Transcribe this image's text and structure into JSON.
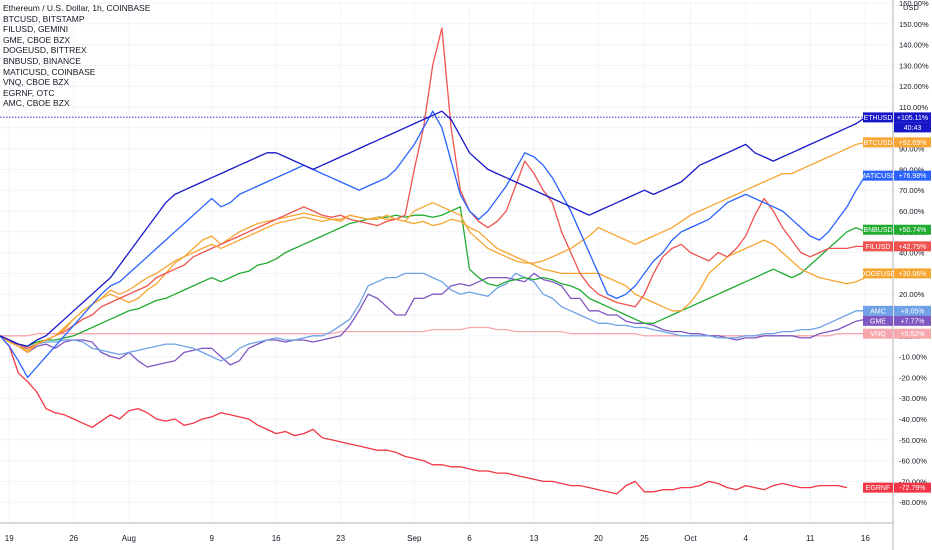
{
  "legend": {
    "main": "Ethereum / U.S. Dollar, 1h, COINBASE",
    "items": [
      "BTCUSD, BITSTAMP",
      "FILUSD, GEMINI",
      "GME, CBOE BZX",
      "DOGEUSD, BITTREX",
      "BNBUSD, BINANCE",
      "MATICUSD, COINBASE",
      "VNQ, CBOE BZX",
      "EGRNF, OTC",
      "AMC, CBOE BZX"
    ]
  },
  "chart_data": {
    "type": "line",
    "y_unit": "USD",
    "ylim": [
      -90,
      160
    ],
    "y_ticks": [
      "160.00%",
      "150.00%",
      "140.00%",
      "130.00%",
      "120.00%",
      "110.00%",
      "100.00%",
      "90.00%",
      "80.00%",
      "70.00%",
      "60.00%",
      "50.00%",
      "40.00%",
      "30.00%",
      "20.00%",
      "10.00%",
      "0.00%",
      "-10.00%",
      "-20.00%",
      "-30.00%",
      "-40.00%",
      "-50.00%",
      "-60.00%",
      "-70.00%",
      "-80.00%"
    ],
    "y_tick_values": [
      160,
      150,
      140,
      130,
      120,
      110,
      100,
      90,
      80,
      70,
      60,
      50,
      40,
      30,
      20,
      10,
      0,
      -10,
      -20,
      -30,
      -40,
      -50,
      -60,
      -70,
      -80
    ],
    "x_ticks": [
      "19",
      "26",
      "Aug",
      "9",
      "16",
      "23",
      "Sep",
      "6",
      "13",
      "20",
      "25",
      "Oct",
      "4",
      "11",
      "16"
    ],
    "x_tick_index": [
      1,
      8,
      14,
      23,
      30,
      37,
      45,
      51,
      58,
      65,
      70,
      75,
      81,
      88,
      94
    ],
    "x_range": [
      0,
      97
    ],
    "crosshair_value": 105.11,
    "countdown": "40:43",
    "series": [
      {
        "name": "EGRNF",
        "color": "#f23645",
        "last_label": "-72.79%",
        "values": [
          0,
          -5,
          -18,
          -22,
          -27,
          -35,
          -37,
          -38,
          -40,
          -42,
          -44,
          -41,
          -38,
          -40,
          -36,
          -35,
          -37,
          -40,
          -41,
          -40,
          -43,
          -42,
          -40,
          -39,
          -37,
          -38,
          -39,
          -40,
          -43,
          -45,
          -47,
          -46,
          -48,
          -47,
          -45,
          -49,
          -50,
          -51,
          -52,
          -53,
          -54,
          -55,
          -55,
          -56,
          -58,
          -59,
          -60,
          -62,
          -62,
          -63,
          -63,
          -64,
          -65,
          -65,
          -66,
          -66,
          -67,
          -68,
          -69,
          -70,
          -70,
          -71,
          -72,
          -72,
          -73,
          -74,
          -75,
          -76,
          -72,
          -70,
          -75,
          -75,
          -74,
          -74,
          -73,
          -73,
          -72,
          -70,
          -71,
          -73,
          -74,
          -72,
          -73,
          -74,
          -72,
          -71,
          -72,
          -73,
          -73,
          -72,
          -72,
          -72,
          -73
        ]
      },
      {
        "name": "VNQ",
        "color": "#f7a8ad",
        "last_label": "+0.52%",
        "values": [
          0,
          0,
          0,
          0,
          1,
          1,
          1,
          1,
          1,
          1,
          1,
          1,
          1,
          1,
          1,
          1,
          1,
          1,
          1,
          1,
          1,
          1,
          1,
          1,
          1,
          1,
          1,
          1,
          1,
          1,
          1,
          1,
          1,
          1,
          1,
          1,
          1,
          2,
          2,
          2,
          2,
          2,
          2,
          2,
          2,
          2,
          2,
          3,
          3,
          3,
          3,
          4,
          4,
          4,
          3,
          3,
          2,
          2,
          2,
          2,
          2,
          2,
          1,
          1,
          1,
          1,
          1,
          1,
          1,
          1,
          0,
          0,
          0,
          0,
          0,
          0,
          0,
          0,
          0,
          0,
          0,
          0,
          0,
          0,
          0,
          0,
          0,
          0,
          0,
          0,
          0,
          1,
          1,
          1,
          1,
          1
        ]
      },
      {
        "name": "GME",
        "color": "#7e57c2",
        "last_label": "+7.77%",
        "values": [
          0,
          -2,
          -5,
          -8,
          -5,
          -4,
          -6,
          -3,
          -2,
          -2,
          -3,
          -8,
          -10,
          -11,
          -8,
          -12,
          -15,
          -14,
          -13,
          -12,
          -8,
          -7,
          -6,
          -6,
          -10,
          -14,
          -12,
          -6,
          -4,
          -2,
          -2,
          -3,
          -2,
          -2,
          -3,
          -2,
          -1,
          0,
          5,
          12,
          20,
          18,
          14,
          10,
          10,
          18,
          18,
          20,
          20,
          24,
          25,
          24,
          26,
          28,
          28,
          28,
          27,
          26,
          30,
          27,
          26,
          24,
          18,
          18,
          12,
          12,
          10,
          10,
          7,
          6,
          6,
          5,
          3,
          2,
          2,
          1,
          1,
          0,
          0,
          -1,
          -2,
          -1,
          -1,
          0,
          0,
          0,
          0,
          -1,
          -1,
          1,
          2,
          3,
          5,
          7,
          8
        ]
      },
      {
        "name": "AMC",
        "color": "#6ea1e6",
        "last_label": "+9.05%",
        "values": [
          0,
          -3,
          -5,
          -6,
          -4,
          -3,
          -3,
          -2,
          -2,
          -3,
          -6,
          -7,
          -8,
          -9,
          -8,
          -7,
          -6,
          -5,
          -4,
          -4,
          -5,
          -6,
          -8,
          -10,
          -12,
          -10,
          -6,
          -4,
          -3,
          -2,
          -1,
          -2,
          -2,
          -1,
          0,
          0,
          2,
          5,
          8,
          15,
          24,
          26,
          28,
          28,
          30,
          30,
          30,
          28,
          26,
          22,
          20,
          21,
          20,
          19,
          23,
          25,
          30,
          28,
          26,
          20,
          18,
          14,
          12,
          10,
          8,
          6,
          6,
          5,
          5,
          4,
          4,
          3,
          2,
          1,
          0,
          0,
          0,
          0,
          -1,
          -1,
          -1,
          0,
          0,
          1,
          1,
          2,
          2,
          3,
          3,
          4,
          6,
          8,
          10,
          12,
          12
        ]
      },
      {
        "name": "BNBUSD",
        "color": "#22ab32",
        "last_label": "+50.74%",
        "values": [
          0,
          -2,
          -4,
          -5,
          -3,
          -2,
          -2,
          -1,
          0,
          2,
          4,
          6,
          8,
          10,
          12,
          13,
          15,
          17,
          18,
          20,
          22,
          24,
          26,
          28,
          26,
          28,
          30,
          31,
          34,
          35,
          37,
          40,
          42,
          44,
          46,
          48,
          50,
          52,
          54,
          55,
          56,
          57,
          57,
          58,
          57,
          58,
          58,
          57,
          58,
          60,
          62,
          32,
          28,
          25,
          24,
          26,
          27,
          28,
          27,
          28,
          27,
          25,
          24,
          22,
          18,
          16,
          14,
          12,
          10,
          8,
          6,
          6,
          8,
          10,
          12,
          14,
          16,
          18,
          20,
          22,
          24,
          26,
          28,
          30,
          32,
          30,
          28,
          30,
          34,
          38,
          42,
          46,
          50,
          52,
          50,
          51
        ]
      },
      {
        "name": "DOGEUSD",
        "color": "#f6a530",
        "last_label": "+30.06%",
        "values": [
          0,
          -3,
          -5,
          -8,
          -4,
          -2,
          0,
          4,
          8,
          12,
          15,
          18,
          20,
          18,
          16,
          18,
          22,
          25,
          30,
          35,
          38,
          42,
          46,
          48,
          44,
          47,
          50,
          52,
          54,
          55,
          56,
          57,
          58,
          59,
          58,
          57,
          56,
          56,
          58,
          57,
          56,
          57,
          56,
          56,
          55,
          54,
          55,
          53,
          54,
          56,
          55,
          52,
          50,
          46,
          42,
          40,
          38,
          36,
          34,
          32,
          31,
          30,
          30,
          30,
          30,
          30,
          28,
          26,
          24,
          20,
          18,
          16,
          14,
          12,
          12,
          16,
          22,
          30,
          34,
          38,
          40,
          42,
          44,
          46,
          44,
          40,
          36,
          32,
          30,
          28,
          27,
          26,
          25,
          26,
          28,
          30,
          30
        ]
      },
      {
        "name": "FILUSD",
        "color": "#ef5350",
        "last_label": "+42.75%",
        "values": [
          0,
          -2,
          -4,
          -6,
          -4,
          -2,
          0,
          2,
          5,
          8,
          10,
          14,
          16,
          18,
          20,
          22,
          24,
          28,
          30,
          32,
          34,
          38,
          40,
          42,
          44,
          46,
          48,
          50,
          52,
          54,
          56,
          58,
          60,
          62,
          60,
          58,
          57,
          58,
          56,
          55,
          54,
          53,
          55,
          56,
          58,
          80,
          100,
          130,
          148,
          100,
          70,
          60,
          55,
          52,
          55,
          60,
          72,
          84,
          78,
          70,
          64,
          50,
          40,
          30,
          24,
          20,
          18,
          16,
          15,
          14,
          20,
          30,
          38,
          42,
          44,
          40,
          38,
          36,
          40,
          38,
          42,
          48,
          58,
          66,
          60,
          52,
          46,
          40,
          38,
          40,
          42,
          42,
          42,
          43,
          43
        ]
      },
      {
        "name": "BTCUSD",
        "color": "#f7a535",
        "last_label": "+92.69%",
        "values": [
          0,
          -3,
          -5,
          -7,
          -4,
          -2,
          0,
          3,
          8,
          12,
          15,
          18,
          22,
          20,
          22,
          25,
          28,
          30,
          33,
          36,
          38,
          40,
          42,
          44,
          42,
          44,
          46,
          48,
          50,
          52,
          54,
          55,
          56,
          57,
          56,
          55,
          56,
          55,
          58,
          57,
          56,
          56,
          58,
          56,
          55,
          60,
          62,
          64,
          62,
          60,
          58,
          50,
          46,
          42,
          40,
          38,
          36,
          35,
          35,
          36,
          38,
          40,
          42,
          45,
          48,
          52,
          50,
          48,
          46,
          44,
          46,
          48,
          50,
          52,
          55,
          58,
          60,
          62,
          64,
          66,
          68,
          70,
          72,
          74,
          76,
          78,
          78,
          80,
          82,
          84,
          86,
          88,
          90,
          92,
          93
        ]
      },
      {
        "name": "MATICUSD",
        "color": "#2962ff",
        "last_label": "+76.98%",
        "values": [
          0,
          -5,
          -12,
          -20,
          -15,
          -10,
          -5,
          0,
          5,
          10,
          15,
          20,
          24,
          26,
          30,
          34,
          38,
          42,
          46,
          50,
          54,
          58,
          62,
          66,
          62,
          64,
          68,
          70,
          72,
          74,
          76,
          78,
          80,
          82,
          80,
          78,
          76,
          74,
          72,
          70,
          72,
          74,
          76,
          80,
          86,
          92,
          100,
          108,
          100,
          84,
          68,
          60,
          56,
          60,
          66,
          72,
          80,
          88,
          86,
          82,
          76,
          68,
          60,
          50,
          40,
          30,
          20,
          18,
          20,
          24,
          30,
          36,
          40,
          46,
          50,
          52,
          54,
          56,
          60,
          64,
          66,
          68,
          66,
          64,
          62,
          60,
          56,
          52,
          48,
          46,
          50,
          56,
          62,
          70,
          77,
          77
        ]
      },
      {
        "name": "ETHUSD",
        "color": "#1717c8",
        "last_label": "+105.11%",
        "values": [
          0,
          -2,
          -4,
          -5,
          -2,
          0,
          4,
          8,
          12,
          16,
          20,
          24,
          28,
          34,
          40,
          46,
          52,
          58,
          64,
          68,
          70,
          72,
          74,
          76,
          78,
          80,
          82,
          84,
          86,
          88,
          88,
          86,
          84,
          82,
          80,
          82,
          84,
          86,
          88,
          90,
          92,
          94,
          96,
          98,
          100,
          102,
          104,
          106,
          108,
          104,
          96,
          88,
          84,
          80,
          78,
          76,
          74,
          72,
          70,
          68,
          66,
          64,
          62,
          60,
          58,
          60,
          62,
          64,
          66,
          68,
          70,
          68,
          70,
          72,
          74,
          78,
          82,
          84,
          86,
          88,
          90,
          92,
          88,
          86,
          84,
          86,
          88,
          90,
          92,
          94,
          96,
          98,
          100,
          102,
          105
        ]
      }
    ]
  }
}
